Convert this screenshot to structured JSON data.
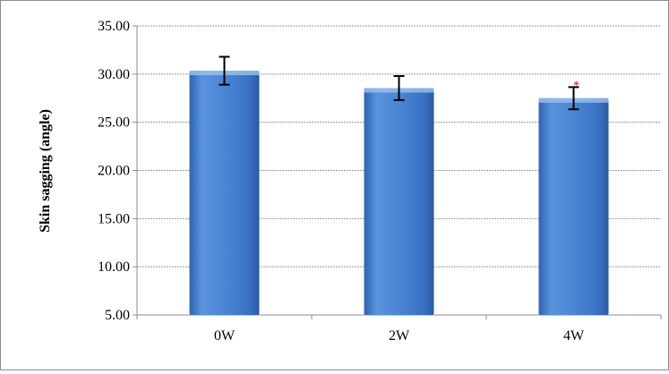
{
  "chart_data": {
    "type": "bar",
    "title": "",
    "xlabel": "",
    "ylabel": "Skin sagging (angle)",
    "categories": [
      "0W",
      "2W",
      "4W"
    ],
    "values": [
      30.35,
      28.55,
      27.5
    ],
    "errors": [
      1.45,
      1.25,
      1.15
    ],
    "annotations": [
      {
        "category": "4W",
        "text": "*"
      }
    ],
    "ylim": [
      5,
      35
    ],
    "yticks": [
      5,
      10,
      15,
      20,
      25,
      30,
      35
    ],
    "ytick_labels": [
      "5.00",
      "10.00",
      "15.00",
      "20.00",
      "25.00",
      "30.00",
      "35.00"
    ],
    "grid": true,
    "bar_color": "#4a86d4",
    "annotation_color": "#c00000"
  }
}
